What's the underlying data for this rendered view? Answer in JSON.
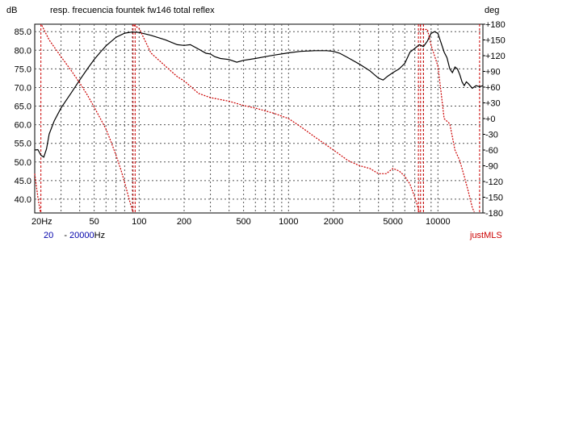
{
  "chart_data": {
    "type": "line",
    "title": "resp. frecuencia fountek fw146 total reflex",
    "ylabel": "dB",
    "y2label": "deg",
    "x_scale": "log",
    "xlim": [
      20,
      20000
    ],
    "ylim": [
      36.3,
      87.0
    ],
    "y2lim": [
      -180,
      180
    ],
    "grid": true,
    "x_ticks": [
      {
        "value": 20,
        "label": "20Hz"
      },
      {
        "value": 50,
        "label": "50"
      },
      {
        "value": 100,
        "label": "100"
      },
      {
        "value": 200,
        "label": "200"
      },
      {
        "value": 500,
        "label": "500"
      },
      {
        "value": 1000,
        "label": "1000"
      },
      {
        "value": 2000,
        "label": "2000"
      },
      {
        "value": 5000,
        "label": "5000"
      },
      {
        "value": 10000,
        "label": "10000"
      }
    ],
    "y_ticks": [
      "85.0",
      "80.0",
      "75.0",
      "70.0",
      "65.0",
      "60.0",
      "55.0",
      "50.0",
      "45.0",
      "40.0"
    ],
    "y2_ticks": [
      "+180",
      "+150",
      "+120",
      "+90",
      "+60",
      "+30",
      "+0",
      "-30",
      "-60",
      "-90",
      "-120",
      "-150",
      "-180"
    ],
    "series": [
      {
        "axis": "left",
        "color": "#000000",
        "style": "solid",
        "points": [
          [
            20,
            53.2
          ],
          [
            21,
            53.3
          ],
          [
            22,
            51.8
          ],
          [
            23,
            51.3
          ],
          [
            24,
            53.5
          ],
          [
            25,
            57.5
          ],
          [
            27,
            61.0
          ],
          [
            30,
            64.5
          ],
          [
            35,
            68.5
          ],
          [
            40,
            72.0
          ],
          [
            45,
            75.0
          ],
          [
            50,
            77.5
          ],
          [
            55,
            79.5
          ],
          [
            60,
            81.2
          ],
          [
            70,
            83.5
          ],
          [
            80,
            84.6
          ],
          [
            90,
            84.9
          ],
          [
            100,
            84.8
          ],
          [
            120,
            84.0
          ],
          [
            150,
            82.8
          ],
          [
            180,
            81.5
          ],
          [
            200,
            81.3
          ],
          [
            220,
            81.5
          ],
          [
            250,
            80.3
          ],
          [
            280,
            79.2
          ],
          [
            300,
            79.0
          ],
          [
            320,
            78.3
          ],
          [
            350,
            77.8
          ],
          [
            400,
            77.5
          ],
          [
            450,
            76.8
          ],
          [
            500,
            77.3
          ],
          [
            600,
            77.8
          ],
          [
            700,
            78.3
          ],
          [
            800,
            78.7
          ],
          [
            1000,
            79.3
          ],
          [
            1200,
            79.7
          ],
          [
            1500,
            79.9
          ],
          [
            1800,
            79.9
          ],
          [
            2000,
            79.7
          ],
          [
            2200,
            79.2
          ],
          [
            2500,
            78.0
          ],
          [
            3000,
            76.2
          ],
          [
            3500,
            74.5
          ],
          [
            4000,
            72.5
          ],
          [
            4300,
            72.0
          ],
          [
            4600,
            73.0
          ],
          [
            5000,
            74.0
          ],
          [
            5500,
            75.0
          ],
          [
            6000,
            76.5
          ],
          [
            6500,
            79.5
          ],
          [
            7000,
            80.5
          ],
          [
            7500,
            81.5
          ],
          [
            8000,
            81.0
          ],
          [
            8500,
            82.5
          ],
          [
            9000,
            84.5
          ],
          [
            9500,
            85.0
          ],
          [
            10000,
            84.5
          ],
          [
            10500,
            82.0
          ],
          [
            11000,
            79.5
          ],
          [
            11500,
            78.0
          ],
          [
            12000,
            75.0
          ],
          [
            12500,
            74.0
          ],
          [
            13000,
            75.5
          ],
          [
            13500,
            75.0
          ],
          [
            14000,
            73.5
          ],
          [
            14500,
            71.5
          ],
          [
            15000,
            70.5
          ],
          [
            15500,
            71.5
          ],
          [
            16000,
            71.0
          ],
          [
            17000,
            69.8
          ],
          [
            18000,
            70.5
          ],
          [
            19000,
            70.2
          ],
          [
            20000,
            70.5
          ]
        ]
      },
      {
        "axis": "right",
        "color": "#cc0000",
        "style": "dotted",
        "points": [
          [
            20,
            -105
          ],
          [
            21,
            -150
          ],
          [
            21.8,
            -178
          ],
          [
            null,
            null
          ],
          [
            22.3,
            178
          ],
          [
            25,
            150
          ],
          [
            30,
            118
          ],
          [
            35,
            92
          ],
          [
            40,
            68
          ],
          [
            45,
            45
          ],
          [
            50,
            22
          ],
          [
            55,
            0
          ],
          [
            60,
            -20
          ],
          [
            65,
            -45
          ],
          [
            70,
            -70
          ],
          [
            75,
            -95
          ],
          [
            80,
            -122
          ],
          [
            85,
            -150
          ],
          [
            88,
            -165
          ],
          [
            91,
            -178
          ],
          [
            null,
            null
          ],
          [
            92,
            178
          ],
          [
            100,
            172
          ],
          [
            120,
            125
          ],
          [
            150,
            100
          ],
          [
            180,
            80
          ],
          [
            200,
            72
          ],
          [
            250,
            48
          ],
          [
            300,
            40
          ],
          [
            400,
            33
          ],
          [
            500,
            25
          ],
          [
            600,
            20
          ],
          [
            800,
            10
          ],
          [
            1000,
            0
          ],
          [
            1200,
            -15
          ],
          [
            1500,
            -35
          ],
          [
            2000,
            -60
          ],
          [
            2500,
            -80
          ],
          [
            3000,
            -90
          ],
          [
            3500,
            -95
          ],
          [
            4000,
            -105
          ],
          [
            4500,
            -105
          ],
          [
            5000,
            -95
          ],
          [
            5500,
            -100
          ],
          [
            6000,
            -110
          ],
          [
            6500,
            -125
          ],
          [
            7000,
            -150
          ],
          [
            7500,
            -178
          ],
          [
            null,
            null
          ],
          [
            7600,
            178
          ],
          [
            7700,
            170
          ],
          [
            8500,
            170
          ],
          [
            9000,
            140
          ],
          [
            10000,
            100
          ],
          [
            10500,
            50
          ],
          [
            11000,
            0
          ],
          [
            12000,
            -10
          ],
          [
            13000,
            -60
          ],
          [
            14000,
            -80
          ],
          [
            15000,
            -110
          ],
          [
            16000,
            -140
          ],
          [
            17000,
            -170
          ],
          [
            17500,
            -178
          ]
        ]
      }
    ],
    "phase_wrap_markers_hz": [
      22,
      91,
      94,
      7400,
      7650,
      8000,
      19000
    ]
  },
  "footer": {
    "range_from": "20",
    "range_sep": "-",
    "range_to": "20000",
    "unit": "Hz",
    "software": "justMLS"
  },
  "colors": {
    "magnitude": "#000000",
    "phase": "#cc0000",
    "range_text": "#0000aa",
    "software_text": "#cc0000"
  }
}
